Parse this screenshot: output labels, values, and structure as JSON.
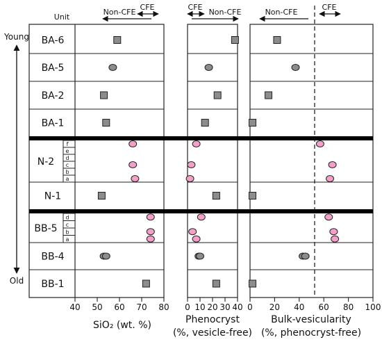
{
  "header": {
    "unit_label": "Unit",
    "non_cfe": "Non-CFE",
    "cfe": "CFE"
  },
  "side": {
    "young": "Young",
    "old": "Old"
  },
  "units": [
    {
      "key": "ba6",
      "label": "BA-6"
    },
    {
      "key": "ba5",
      "label": "BA-5"
    },
    {
      "key": "ba2",
      "label": "BA-2"
    },
    {
      "key": "ba1",
      "label": "BA-1"
    },
    {
      "key": "n2",
      "label": "N-2",
      "subunits": [
        "f",
        "e",
        "d",
        "c",
        "b",
        "a"
      ]
    },
    {
      "key": "n1",
      "label": "N-1"
    },
    {
      "key": "bb5",
      "label": "BB-5",
      "subunits": [
        "d",
        "c",
        "b",
        "a"
      ]
    },
    {
      "key": "bb4",
      "label": "BB-4"
    },
    {
      "key": "bb1",
      "label": "BB-1"
    }
  ],
  "colors": {
    "square": "#8c8c8c",
    "circle_gray": "#8c8c8c",
    "circle_pink": "#f2a0c8",
    "outline": "#222222",
    "separator": "#000000"
  },
  "chart_data": [
    {
      "type": "scatter",
      "xlabel": "SiO₂ (wt. %)",
      "xlim": [
        40,
        80
      ],
      "ticks": [
        40,
        50,
        60,
        70,
        80
      ],
      "points": [
        {
          "unit": "BA-6",
          "x": 59,
          "marker": "square"
        },
        {
          "unit": "BA-5",
          "x": 57,
          "marker": "circle-gray"
        },
        {
          "unit": "BA-2",
          "x": 53,
          "marker": "square"
        },
        {
          "unit": "BA-1",
          "x": 54,
          "marker": "square"
        },
        {
          "unit": "N-2",
          "sub": "f",
          "x": 66,
          "marker": "circle-pink"
        },
        {
          "unit": "N-2",
          "sub": "c",
          "x": 66,
          "marker": "circle-pink"
        },
        {
          "unit": "N-2",
          "sub": "a",
          "x": 67,
          "marker": "circle-pink"
        },
        {
          "unit": "N-1",
          "x": 52,
          "marker": "square"
        },
        {
          "unit": "BB-5",
          "sub": "d",
          "x": 74,
          "marker": "circle-pink"
        },
        {
          "unit": "BB-5",
          "sub": "b",
          "x": 74,
          "marker": "circle-pink"
        },
        {
          "unit": "BB-5",
          "sub": "a",
          "x": 74,
          "marker": "circle-pink"
        },
        {
          "unit": "BB-4",
          "x": 53,
          "marker": "circle-gray"
        },
        {
          "unit": "BB-4",
          "x": 54,
          "marker": "circle-gray"
        },
        {
          "unit": "BB-1",
          "x": 72,
          "marker": "square"
        }
      ]
    },
    {
      "type": "scatter",
      "xlabel": "Phenocryst",
      "xlabel2": "(%, vesicle-free)",
      "xlim": [
        0,
        40
      ],
      "ticks": [
        0,
        10,
        20,
        30,
        40
      ],
      "points": [
        {
          "unit": "BA-6",
          "x": 38,
          "marker": "square"
        },
        {
          "unit": "BA-5",
          "x": 17,
          "marker": "circle-gray"
        },
        {
          "unit": "BA-2",
          "x": 24,
          "marker": "square"
        },
        {
          "unit": "BA-1",
          "x": 14,
          "marker": "square"
        },
        {
          "unit": "N-2",
          "sub": "f",
          "x": 7,
          "marker": "circle-pink"
        },
        {
          "unit": "N-2",
          "sub": "c",
          "x": 3,
          "marker": "circle-pink"
        },
        {
          "unit": "N-2",
          "sub": "a",
          "x": 2,
          "marker": "circle-pink"
        },
        {
          "unit": "N-1",
          "x": 23,
          "marker": "square"
        },
        {
          "unit": "BB-5",
          "sub": "d",
          "x": 11,
          "marker": "circle-pink"
        },
        {
          "unit": "BB-5",
          "sub": "b",
          "x": 4,
          "marker": "circle-pink"
        },
        {
          "unit": "BB-5",
          "sub": "a",
          "x": 7,
          "marker": "circle-pink"
        },
        {
          "unit": "BB-4",
          "x": 9,
          "marker": "circle-gray"
        },
        {
          "unit": "BB-4",
          "x": 10,
          "marker": "circle-gray"
        },
        {
          "unit": "BB-1",
          "x": 23,
          "marker": "square"
        }
      ]
    },
    {
      "type": "scatter",
      "xlabel": "Bulk-vesicularity",
      "xlabel2": "(%, phenocryst-free)",
      "xlim": [
        0,
        100
      ],
      "ticks": [
        0,
        20,
        40,
        60,
        80,
        100
      ],
      "threshold": 52,
      "points": [
        {
          "unit": "BA-6",
          "x": 22,
          "marker": "square"
        },
        {
          "unit": "BA-5",
          "x": 37,
          "marker": "circle-gray"
        },
        {
          "unit": "BA-2",
          "x": 15,
          "marker": "square"
        },
        {
          "unit": "BA-1",
          "x": 2,
          "marker": "square"
        },
        {
          "unit": "N-2",
          "sub": "f",
          "x": 57,
          "marker": "circle-pink"
        },
        {
          "unit": "N-2",
          "sub": "c",
          "x": 67,
          "marker": "circle-pink"
        },
        {
          "unit": "N-2",
          "sub": "a",
          "x": 65,
          "marker": "circle-pink"
        },
        {
          "unit": "N-1",
          "x": 2,
          "marker": "square"
        },
        {
          "unit": "BB-5",
          "sub": "d",
          "x": 64,
          "marker": "circle-pink"
        },
        {
          "unit": "BB-5",
          "sub": "b",
          "x": 68,
          "marker": "circle-pink"
        },
        {
          "unit": "BB-5",
          "sub": "a",
          "x": 69,
          "marker": "circle-pink"
        },
        {
          "unit": "BB-4",
          "x": 43,
          "marker": "circle-gray"
        },
        {
          "unit": "BB-4",
          "x": 45,
          "marker": "circle-gray"
        },
        {
          "unit": "BB-1",
          "x": 2,
          "marker": "square"
        }
      ]
    }
  ]
}
